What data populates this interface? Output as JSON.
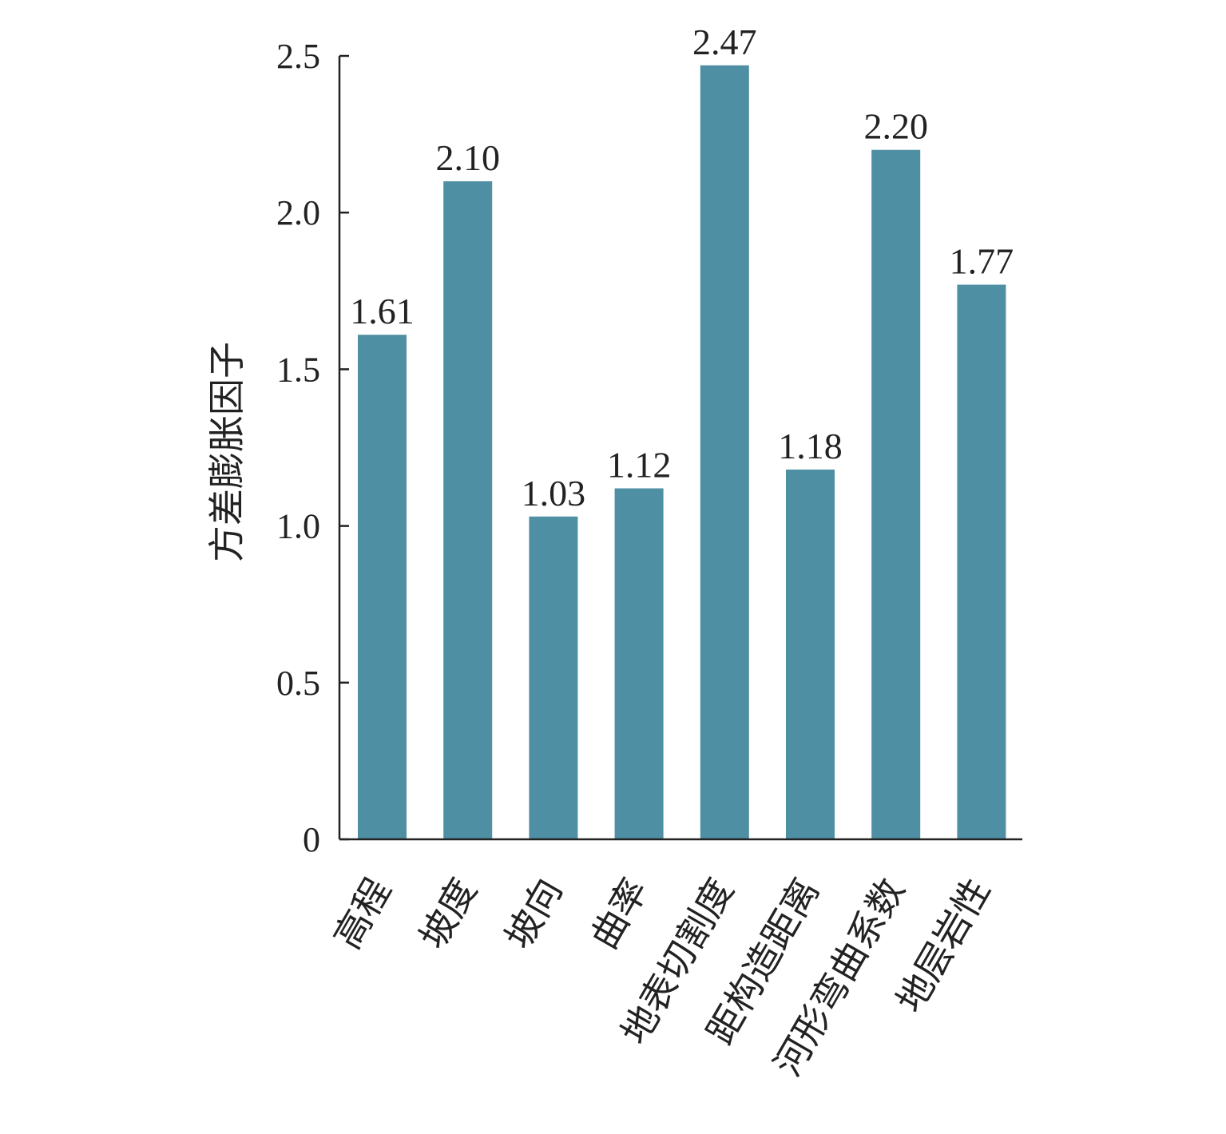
{
  "chart_data": {
    "type": "bar",
    "categories": [
      "高程",
      "坡度",
      "坡向",
      "曲率",
      "地表切割度",
      "距构造距离",
      "河形弯曲系数",
      "地层岩性"
    ],
    "values": [
      1.61,
      2.1,
      1.03,
      1.12,
      2.47,
      1.18,
      2.2,
      1.77
    ],
    "value_labels": [
      "1.61",
      "2.10",
      "1.03",
      "1.12",
      "2.47",
      "1.18",
      "2.20",
      "1.77"
    ],
    "ylabel": "方差膨胀因子",
    "ylim": [
      0,
      2.5
    ],
    "yticks": [
      0,
      0.5,
      1.0,
      1.5,
      2.0,
      2.5
    ],
    "ytick_labels": [
      "0",
      "0.5",
      "1.0",
      "1.5",
      "2.0",
      "2.5"
    ],
    "bar_color": "#4f8fa3",
    "grid": false,
    "legend": "none"
  }
}
